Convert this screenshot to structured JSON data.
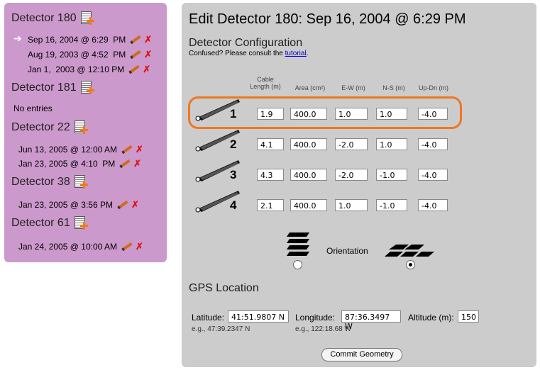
{
  "sidebar": {
    "detectors": [
      {
        "name": "Detector 180",
        "entries": [
          {
            "date": "Sep 16, 2004",
            "time": "6:29  PM",
            "current": true
          },
          {
            "date": "Aug 19, 2003",
            "time": "4:52  PM",
            "current": false
          },
          {
            "date": "Jan 1,  2003",
            "time": "12:10 PM",
            "current": false
          }
        ]
      },
      {
        "name": "Detector 181",
        "entries": [],
        "empty_text": "No entries"
      },
      {
        "name": "Detector 22",
        "entries": [
          {
            "date": "Jun 13, 2005",
            "time": "12:00 AM"
          },
          {
            "date": "Jan 23, 2005",
            "time": "4:10  PM"
          }
        ]
      },
      {
        "name": "Detector 38",
        "entries": [
          {
            "date": "Jan 23, 2005",
            "time": "3:56 PM"
          }
        ]
      },
      {
        "name": "Detector 61",
        "entries": [
          {
            "date": "Jan 24, 2005",
            "time": "10:00 AM"
          }
        ]
      }
    ]
  },
  "main": {
    "title": "Edit Detector 180: Sep 16, 2004 @ 6:29 PM",
    "config_heading": "Detector Configuration",
    "confused_text": "Confused? Please consult the ",
    "tutorial_link": "tutorial",
    "period": ".",
    "columns": {
      "cable_line1": "Cable",
      "cable_line2": "Length (m)",
      "area": "Area (cm²)",
      "ew": "E-W (m)",
      "ns": "N-S (m)",
      "updn": "Up-Dn (m)"
    },
    "rows": [
      {
        "num": "1",
        "cable": "1.9",
        "area": "400.0",
        "ew": "1.0",
        "ns": "1.0",
        "updn": "-4.0"
      },
      {
        "num": "2",
        "cable": "4.1",
        "area": "400.0",
        "ew": "-2.0",
        "ns": "1.0",
        "updn": "-4.0"
      },
      {
        "num": "3",
        "cable": "4.3",
        "area": "400.0",
        "ew": "-2.0",
        "ns": "-1.0",
        "updn": "-4.0"
      },
      {
        "num": "4",
        "cable": "2.1",
        "area": "400.0",
        "ew": "1.0",
        "ns": "-1.0",
        "updn": "-4.0"
      }
    ],
    "orientation_label": "Orientation",
    "orientation_selected": "flat",
    "gps_heading": "GPS Location",
    "latitude_label": "Latitude:",
    "latitude_value": "41:51.9807 N",
    "latitude_example": "e.g., 47:39.2347 N",
    "longitude_label": "Longitude:",
    "longitude_value": "87:36.3497 W",
    "longitude_example": "e.g., 122:18.68 W",
    "altitude_label": "Altitude (m):",
    "altitude_value": "150",
    "commit_label": "Commit Geometry"
  },
  "colors": {
    "sidebar_bg": "#cc99cc",
    "panel_bg": "#cccccc",
    "highlight": "#ee7722",
    "link": "#0000cc",
    "delete": "#dd1111"
  }
}
